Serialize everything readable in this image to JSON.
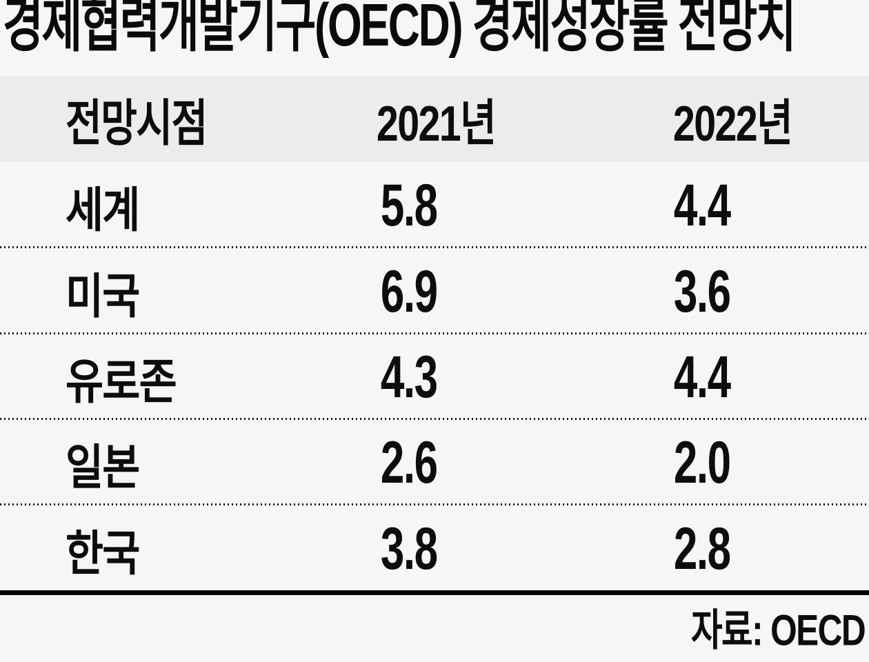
{
  "title": "경제협력개발기구(OECD) 경제성장률 전망치",
  "source": "자료: OECD",
  "colors": {
    "background": "#f7f6f5",
    "header_band": "#edecea",
    "text": "#0d0d0d",
    "rule": "#050505"
  },
  "table": {
    "headers": [
      "전망시점",
      "2021년",
      "2022년"
    ],
    "rows": [
      {
        "label": "세계",
        "y2021": "5.8",
        "y2022": "4.4"
      },
      {
        "label": "미국",
        "y2021": "6.9",
        "y2022": "3.6"
      },
      {
        "label": "유로존",
        "y2021": "4.3",
        "y2022": "4.4"
      },
      {
        "label": "일본",
        "y2021": "2.6",
        "y2022": "2.0"
      },
      {
        "label": "한국",
        "y2021": "3.8",
        "y2022": "2.8"
      }
    ]
  },
  "chart_data": {
    "type": "table",
    "title": "경제협력개발기구(OECD) 경제성장률 전망치",
    "columns": [
      "전망시점",
      "2021년",
      "2022년"
    ],
    "rows": [
      [
        "세계",
        5.8,
        4.4
      ],
      [
        "미국",
        6.9,
        3.6
      ],
      [
        "유로존",
        4.3,
        4.4
      ],
      [
        "일본",
        2.6,
        2.0
      ],
      [
        "한국",
        3.8,
        2.8
      ]
    ],
    "source": "자료: OECD",
    "layout": "header band gray, dotted row separators, thick solid bottom rule, source bottom-right"
  }
}
